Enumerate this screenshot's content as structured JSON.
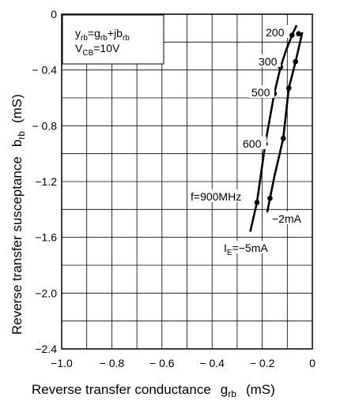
{
  "chart_data": {
    "type": "line",
    "xlim": [
      -1.0,
      0
    ],
    "ylim": [
      -2.4,
      0
    ],
    "x_ticks": [
      "−1.0",
      "− 0.8",
      "− 0.6",
      "− 0.4",
      "− 0.2",
      "0"
    ],
    "x_tick_values": [
      -1.0,
      -0.8,
      -0.6,
      -0.4,
      -0.2,
      0
    ],
    "y_ticks": [
      "0",
      "− 0.4",
      "− 0.8",
      "−1.2",
      "−1.6",
      "−2.0",
      "−2.4"
    ],
    "y_tick_values": [
      0,
      -0.4,
      -0.8,
      -1.2,
      -1.6,
      -2.0,
      -2.4
    ],
    "grid": true,
    "xlabel": {
      "text": "Reverse transfer conductance",
      "symbol": "g",
      "sub": "rb",
      "unit": "(mS)"
    },
    "ylabel": {
      "text": "Reverse transfer susceptance",
      "symbol": "b",
      "sub": "rb",
      "unit": "(mS)"
    },
    "legend_box": {
      "line1": {
        "y": "y",
        "y_sub": "rb",
        "eq": "=g",
        "g_sub": "rb",
        "plus": "+jb",
        "b_sub": "rb"
      },
      "line2": {
        "v": "V",
        "v_sub": "CB",
        "val": "=10V"
      }
    },
    "series": [
      {
        "name": "I_E=−5mA",
        "label_main": "I",
        "label_sub": "E",
        "label_rest": "=−5mA",
        "x": [
          -0.248,
          -0.221,
          -0.188,
          -0.152,
          -0.127,
          -0.105,
          -0.081,
          -0.063
        ],
        "y": [
          -1.56,
          -1.35,
          -0.93,
          -0.57,
          -0.38,
          -0.26,
          -0.15,
          -0.08
        ],
        "points": [
          {
            "x": -0.221,
            "y": -1.35
          },
          {
            "x": -0.188,
            "y": -0.93
          },
          {
            "x": -0.152,
            "y": -0.57
          },
          {
            "x": -0.127,
            "y": -0.38
          },
          {
            "x": -0.081,
            "y": -0.15
          }
        ]
      },
      {
        "name": "−2mA",
        "label": "−2mA",
        "x": [
          -0.18,
          -0.169,
          -0.151,
          -0.116,
          -0.094,
          -0.067,
          -0.04
        ],
        "y": [
          -1.42,
          -1.32,
          -1.16,
          -0.89,
          -0.53,
          -0.34,
          -0.13
        ],
        "points": [
          {
            "x": -0.169,
            "y": -1.32
          },
          {
            "x": -0.116,
            "y": -0.89
          },
          {
            "x": -0.094,
            "y": -0.53
          },
          {
            "x": -0.067,
            "y": -0.34
          },
          {
            "x": -0.055,
            "y": -0.14
          }
        ]
      }
    ],
    "freq_labels": [
      "200",
      "300",
      "500",
      "600",
      "f=900MHz"
    ]
  }
}
